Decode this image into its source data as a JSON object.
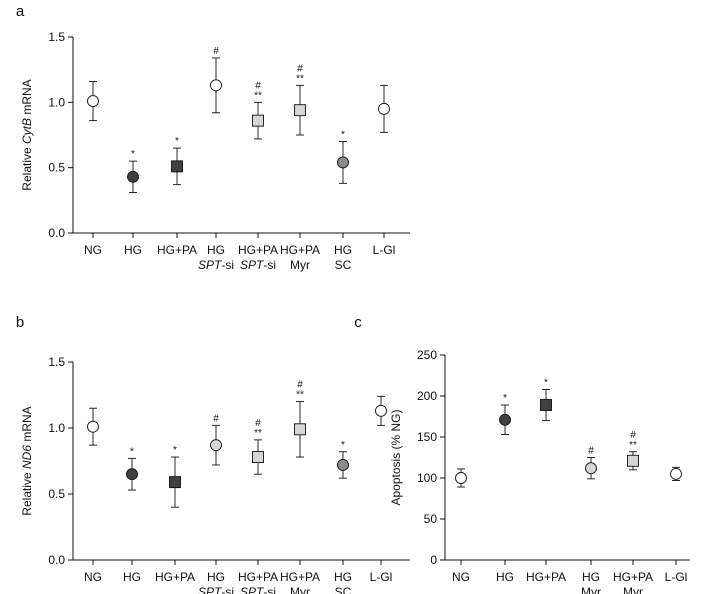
{
  "chart_data": [
    {
      "panel": "a",
      "type": "scatter",
      "ylabel_prefix": "Relative ",
      "ylabel_italic": "CytB",
      "ylabel_suffix": " mRNA",
      "ylim": [
        0,
        1.5
      ],
      "yticks": [
        "0.0",
        "0.5",
        "1.0",
        "1.5"
      ],
      "ytick_values": [
        0,
        0.5,
        1.0,
        1.5
      ],
      "categories": [
        {
          "line1": "NG",
          "line2": "",
          "line2_italic": "",
          "line2_suffix": ""
        },
        {
          "line1": "HG",
          "line2": "",
          "line2_italic": "",
          "line2_suffix": ""
        },
        {
          "line1": "HG+PA",
          "line2": "",
          "line2_italic": "",
          "line2_suffix": ""
        },
        {
          "line1": "HG",
          "line2": "",
          "line2_italic": "SPT",
          "line2_suffix": "-si"
        },
        {
          "line1": "HG+PA",
          "line2": "",
          "line2_italic": "SPT",
          "line2_suffix": "-si"
        },
        {
          "line1": "HG+PA",
          "line2": "Myr",
          "line2_italic": "",
          "line2_suffix": ""
        },
        {
          "line1": "HG",
          "line2": "SC",
          "line2_italic": "",
          "line2_suffix": ""
        },
        {
          "line1": "L-Gl",
          "line2": "",
          "line2_italic": "",
          "line2_suffix": ""
        }
      ],
      "values": [
        1.01,
        0.43,
        0.51,
        1.13,
        0.86,
        0.94,
        0.54,
        0.95
      ],
      "err": [
        0.15,
        0.12,
        0.14,
        0.21,
        0.14,
        0.19,
        0.16,
        0.18
      ],
      "markers": [
        "circle-white",
        "circle-dark",
        "square-dark",
        "circle-white",
        "square-light",
        "square-light",
        "circle-mid",
        "circle-white"
      ],
      "annotations": [
        [],
        [
          "*"
        ],
        [
          "*"
        ],
        [
          "#"
        ],
        [
          "#",
          "**"
        ],
        [
          "#",
          "**"
        ],
        [
          "*"
        ],
        []
      ]
    },
    {
      "panel": "b",
      "type": "scatter",
      "ylabel_prefix": "Relative ",
      "ylabel_italic": "ND6",
      "ylabel_suffix": " mRNA",
      "ylim": [
        0,
        1.5
      ],
      "yticks": [
        "0.0",
        "0.5",
        "1.0",
        "1.5"
      ],
      "ytick_values": [
        0,
        0.5,
        1.0,
        1.5
      ],
      "categories": [
        {
          "line1": "NG",
          "line2": "",
          "line2_italic": "",
          "line2_suffix": ""
        },
        {
          "line1": "HG",
          "line2": "",
          "line2_italic": "",
          "line2_suffix": ""
        },
        {
          "line1": "HG+PA",
          "line2": "",
          "line2_italic": "",
          "line2_suffix": ""
        },
        {
          "line1": "HG",
          "line2": "",
          "line2_italic": "SPT",
          "line2_suffix": "-si"
        },
        {
          "line1": "HG+PA",
          "line2": "",
          "line2_italic": "SPT",
          "line2_suffix": "-si"
        },
        {
          "line1": "HG+PA",
          "line2": "Myr",
          "line2_italic": "",
          "line2_suffix": ""
        },
        {
          "line1": "HG",
          "line2": "SC",
          "line2_italic": "",
          "line2_suffix": ""
        },
        {
          "line1": "L-Gl",
          "line2": "",
          "line2_italic": "",
          "line2_suffix": ""
        }
      ],
      "values": [
        1.01,
        0.65,
        0.59,
        0.87,
        0.78,
        0.99,
        0.72,
        1.13
      ],
      "err": [
        0.14,
        0.12,
        0.19,
        0.15,
        0.13,
        0.21,
        0.1,
        0.11
      ],
      "markers": [
        "circle-white",
        "circle-dark",
        "square-dark",
        "circle-light",
        "square-light",
        "square-light",
        "circle-mid",
        "circle-white"
      ],
      "annotations": [
        [],
        [
          "*"
        ],
        [
          "*"
        ],
        [
          "#"
        ],
        [
          "#",
          "**"
        ],
        [
          "#",
          "**"
        ],
        [
          "*"
        ],
        []
      ]
    },
    {
      "panel": "c",
      "type": "scatter",
      "ylabel_prefix": "Apoptosis (% NG)",
      "ylabel_italic": "",
      "ylabel_suffix": "",
      "ylim": [
        0,
        250
      ],
      "yticks": [
        "0",
        "50",
        "100",
        "150",
        "200",
        "250"
      ],
      "ytick_values": [
        0,
        50,
        100,
        150,
        200,
        250
      ],
      "categories": [
        {
          "line1": "NG",
          "line2": "",
          "line2_italic": "",
          "line2_suffix": ""
        },
        {
          "line1": "HG",
          "line2": "",
          "line2_italic": "",
          "line2_suffix": ""
        },
        {
          "line1": "HG+PA",
          "line2": "",
          "line2_italic": "",
          "line2_suffix": ""
        },
        {
          "line1": "HG",
          "line2": "Myr",
          "line2_italic": "",
          "line2_suffix": ""
        },
        {
          "line1": "HG+PA",
          "line2": "Myr",
          "line2_italic": "",
          "line2_suffix": ""
        },
        {
          "line1": "L-Gl",
          "line2": "",
          "line2_italic": "",
          "line2_suffix": ""
        }
      ],
      "values": [
        100,
        171,
        189,
        112,
        121,
        105
      ],
      "err": [
        11,
        18,
        19,
        13,
        11,
        8
      ],
      "markers": [
        "circle-white",
        "circle-dark",
        "square-dark",
        "circle-light",
        "square-light",
        "circle-white"
      ],
      "annotations": [
        [],
        [
          "*"
        ],
        [
          "*"
        ],
        [
          "#"
        ],
        [
          "#",
          "**"
        ],
        []
      ]
    }
  ],
  "colors": {
    "white": "#ffffff",
    "dark": "#3f3f3f",
    "mid": "#8c8c8c",
    "light": "#d6d6d6",
    "stroke": "#111111"
  }
}
